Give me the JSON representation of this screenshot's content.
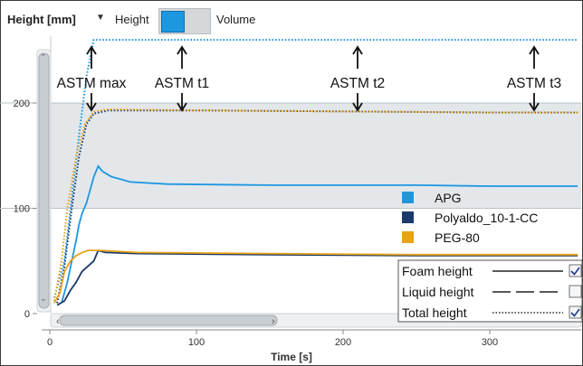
{
  "toolbar": {
    "axis_selector": "Height [mm]",
    "dropdown_icon": "caret-down-icon",
    "toggle_left": "Height",
    "toggle_right": "Volume",
    "toggle_state": "Height"
  },
  "annotations": [
    "ASTM max",
    "ASTM t1",
    "ASTM t2",
    "ASTM t3"
  ],
  "series_legend": [
    {
      "name": "APG",
      "color": "#1d97e0"
    },
    {
      "name": "Polyaldo_10-1-CC",
      "color": "#1a3a6b"
    },
    {
      "name": "PEG-80",
      "color": "#e8a317"
    }
  ],
  "line_legend": [
    {
      "label": "Foam height",
      "style": "solid",
      "checked": true
    },
    {
      "label": "Liquid height",
      "style": "dashed",
      "checked": false
    },
    {
      "label": "Total height",
      "style": "dotted",
      "checked": true
    }
  ],
  "chart_data": {
    "type": "line",
    "xlabel": "Time [s]",
    "ylabel": "Height [mm]",
    "xlim": [
      0,
      360
    ],
    "ylim": [
      0,
      265
    ],
    "xticks": [
      0,
      100,
      200,
      300
    ],
    "yticks": [
      0,
      100,
      200
    ],
    "shaded_band": [
      100,
      200
    ],
    "series": [
      {
        "name": "APG",
        "kind": "total",
        "color": "#1d97e0",
        "points": [
          [
            3,
            15
          ],
          [
            10,
            50
          ],
          [
            15,
            110
          ],
          [
            20,
            170
          ],
          [
            25,
            225
          ],
          [
            30,
            260
          ],
          [
            60,
            260
          ],
          [
            120,
            260
          ],
          [
            200,
            260
          ],
          [
            300,
            260
          ],
          [
            360,
            260
          ]
        ]
      },
      {
        "name": "APG",
        "kind": "foam",
        "color": "#1d97e0",
        "points": [
          [
            8,
            10
          ],
          [
            12,
            30
          ],
          [
            15,
            50
          ],
          [
            18,
            70
          ],
          [
            20,
            85
          ],
          [
            22,
            95
          ],
          [
            25,
            105
          ],
          [
            28,
            120
          ],
          [
            30,
            130
          ],
          [
            33,
            140
          ],
          [
            36,
            135
          ],
          [
            42,
            130
          ],
          [
            55,
            125
          ],
          [
            80,
            123
          ],
          [
            150,
            122
          ],
          [
            250,
            122
          ],
          [
            300,
            121
          ],
          [
            360,
            121
          ]
        ]
      },
      {
        "name": "Polyaldo_10-1-CC",
        "kind": "total",
        "color": "#1a3a6b",
        "points": [
          [
            5,
            10
          ],
          [
            10,
            45
          ],
          [
            15,
            100
          ],
          [
            20,
            150
          ],
          [
            25,
            180
          ],
          [
            30,
            190
          ],
          [
            40,
            193
          ],
          [
            100,
            193
          ],
          [
            200,
            192
          ],
          [
            300,
            191
          ],
          [
            360,
            191
          ]
        ]
      },
      {
        "name": "Polyaldo_10-1-CC",
        "kind": "foam",
        "color": "#1a3a6b",
        "points": [
          [
            5,
            8
          ],
          [
            10,
            12
          ],
          [
            14,
            22
          ],
          [
            18,
            30
          ],
          [
            22,
            40
          ],
          [
            26,
            45
          ],
          [
            30,
            50
          ],
          [
            33,
            60
          ],
          [
            38,
            58
          ],
          [
            60,
            57
          ],
          [
            150,
            56
          ],
          [
            250,
            55
          ],
          [
            360,
            55
          ]
        ]
      },
      {
        "name": "PEG-80",
        "kind": "total",
        "color": "#e8a317",
        "points": [
          [
            3,
            12
          ],
          [
            8,
            50
          ],
          [
            12,
            100
          ],
          [
            18,
            150
          ],
          [
            24,
            180
          ],
          [
            30,
            192
          ],
          [
            40,
            194
          ],
          [
            100,
            193
          ],
          [
            200,
            192
          ],
          [
            300,
            191
          ],
          [
            360,
            191
          ]
        ]
      },
      {
        "name": "PEG-80",
        "kind": "foam",
        "color": "#e8a317",
        "points": [
          [
            3,
            10
          ],
          [
            7,
            20
          ],
          [
            10,
            40
          ],
          [
            14,
            50
          ],
          [
            18,
            55
          ],
          [
            22,
            58
          ],
          [
            26,
            60
          ],
          [
            35,
            60
          ],
          [
            60,
            58
          ],
          [
            150,
            57
          ],
          [
            250,
            56
          ],
          [
            360,
            56
          ]
        ]
      }
    ]
  }
}
